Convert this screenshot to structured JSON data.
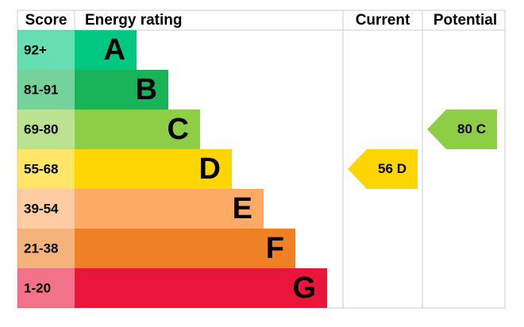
{
  "header": {
    "score": "Score",
    "rating": "Energy rating",
    "current": "Current",
    "potential": "Potential"
  },
  "bands": [
    {
      "score": "92+",
      "letter": "A",
      "color": "#00c781"
    },
    {
      "score": "81-91",
      "letter": "B",
      "color": "#19b459"
    },
    {
      "score": "69-80",
      "letter": "C",
      "color": "#8dce46"
    },
    {
      "score": "55-68",
      "letter": "D",
      "color": "#ffd500"
    },
    {
      "score": "39-54",
      "letter": "E",
      "color": "#fcaa65"
    },
    {
      "score": "21-38",
      "letter": "F",
      "color": "#ef8023"
    },
    {
      "score": "1-20",
      "letter": "G",
      "color": "#e9153b"
    }
  ],
  "current": {
    "score": 56,
    "letter": "D"
  },
  "potential": {
    "score": 80,
    "letter": "C"
  }
}
